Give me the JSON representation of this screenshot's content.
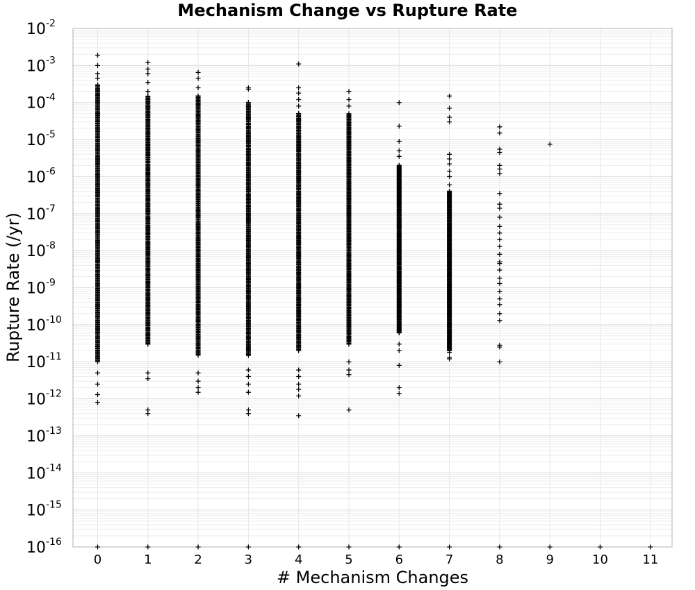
{
  "chart_data": {
    "type": "scatter",
    "title": "Mechanism Change vs Rupture Rate",
    "xlabel": "# Mechanism Changes",
    "ylabel": "Rupture Rate (/yr)",
    "x_ticks": [
      "0",
      "1",
      "2",
      "3",
      "4",
      "5",
      "6",
      "7",
      "8",
      "9",
      "10",
      "11"
    ],
    "xlim": [
      -0.5,
      11.5
    ],
    "y_scale": "log",
    "ylim": [
      1e-16,
      0.01
    ],
    "y_ticks": [
      {
        "base": "10",
        "exp": "-2"
      },
      {
        "base": "10",
        "exp": "-3"
      },
      {
        "base": "10",
        "exp": "-4"
      },
      {
        "base": "10",
        "exp": "-5"
      },
      {
        "base": "10",
        "exp": "-6"
      },
      {
        "base": "10",
        "exp": "-7"
      },
      {
        "base": "10",
        "exp": "-8"
      },
      {
        "base": "10",
        "exp": "-9"
      },
      {
        "base": "10",
        "exp": "-10"
      },
      {
        "base": "10",
        "exp": "-11"
      },
      {
        "base": "10",
        "exp": "-12"
      },
      {
        "base": "10",
        "exp": "-13"
      },
      {
        "base": "10",
        "exp": "-14"
      },
      {
        "base": "10",
        "exp": "-15"
      },
      {
        "base": "10",
        "exp": "-16"
      }
    ],
    "grid": true,
    "marker": "+",
    "series": [
      {
        "dense_ranges": [
          {
            "x": 0,
            "y_min": 1e-11,
            "y_max": 0.0003
          },
          {
            "x": 1,
            "y_min": 3e-11,
            "y_max": 0.00015
          },
          {
            "x": 2,
            "y_min": 1.5e-11,
            "y_max": 0.00015
          },
          {
            "x": 3,
            "y_min": 1.5e-11,
            "y_max": 0.0001
          },
          {
            "x": 4,
            "y_min": 2e-11,
            "y_max": 5e-05
          },
          {
            "x": 5,
            "y_min": 3e-11,
            "y_max": 5e-05
          },
          {
            "x": 6,
            "y_min": 6e-11,
            "y_max": 2e-06
          },
          {
            "x": 7,
            "y_min": 2e-11,
            "y_max": 4e-07
          }
        ],
        "points": [
          [
            0,
            0.0019
          ],
          [
            0,
            0.001
          ],
          [
            0,
            0.0006
          ],
          [
            0,
            0.00045
          ],
          [
            0,
            5e-12
          ],
          [
            0,
            2.5e-12
          ],
          [
            0,
            1.3e-12
          ],
          [
            0,
            8e-13
          ],
          [
            0,
            1e-16
          ],
          [
            1,
            0.0012
          ],
          [
            1,
            0.0008
          ],
          [
            1,
            0.0006
          ],
          [
            1,
            0.00035
          ],
          [
            1,
            0.0002
          ],
          [
            1,
            5e-12
          ],
          [
            1,
            3.5e-12
          ],
          [
            1,
            5e-13
          ],
          [
            1,
            4e-13
          ],
          [
            1,
            1e-16
          ],
          [
            2,
            0.00065
          ],
          [
            2,
            0.00045
          ],
          [
            2,
            0.00025
          ],
          [
            2,
            5e-12
          ],
          [
            2,
            3e-12
          ],
          [
            2,
            2e-12
          ],
          [
            2,
            1.5e-12
          ],
          [
            2,
            1e-16
          ],
          [
            3,
            0.00025
          ],
          [
            3,
            0.00023
          ],
          [
            3,
            6e-12
          ],
          [
            3,
            4e-12
          ],
          [
            3,
            2.5e-12
          ],
          [
            3,
            1.5e-12
          ],
          [
            3,
            5e-13
          ],
          [
            3,
            4e-13
          ],
          [
            3,
            1e-16
          ],
          [
            4,
            0.0011
          ],
          [
            4,
            0.00025
          ],
          [
            4,
            0.00018
          ],
          [
            4,
            0.00012
          ],
          [
            4,
            8e-05
          ],
          [
            4,
            6e-12
          ],
          [
            4,
            4e-12
          ],
          [
            4,
            2.5e-12
          ],
          [
            4,
            1.8e-12
          ],
          [
            4,
            1.2e-12
          ],
          [
            4,
            3.5e-13
          ],
          [
            4,
            1e-16
          ],
          [
            5,
            0.0002
          ],
          [
            5,
            0.00012
          ],
          [
            5,
            8e-05
          ],
          [
            5,
            1e-11
          ],
          [
            5,
            6e-12
          ],
          [
            5,
            4.5e-12
          ],
          [
            5,
            5e-13
          ],
          [
            5,
            1e-16
          ],
          [
            6,
            0.0001
          ],
          [
            6,
            2.3e-05
          ],
          [
            6,
            9e-06
          ],
          [
            6,
            5e-06
          ],
          [
            6,
            3.5e-06
          ],
          [
            6,
            3e-11
          ],
          [
            6,
            2e-11
          ],
          [
            6,
            8e-12
          ],
          [
            6,
            2e-12
          ],
          [
            6,
            1.4e-12
          ],
          [
            6,
            1e-16
          ],
          [
            7,
            0.00015
          ],
          [
            7,
            7e-05
          ],
          [
            7,
            4e-05
          ],
          [
            7,
            3e-05
          ],
          [
            7,
            4e-06
          ],
          [
            7,
            3e-06
          ],
          [
            7,
            2.2e-06
          ],
          [
            7,
            1.4e-06
          ],
          [
            7,
            1e-06
          ],
          [
            7,
            6e-07
          ],
          [
            7,
            2.5e-11
          ],
          [
            7,
            1.8e-11
          ],
          [
            7,
            1.3e-11
          ],
          [
            7,
            1.2e-11
          ],
          [
            7,
            1e-16
          ],
          [
            8,
            2.2e-05
          ],
          [
            8,
            1.5e-05
          ],
          [
            8,
            5.5e-06
          ],
          [
            8,
            4.5e-06
          ],
          [
            8,
            2e-06
          ],
          [
            8,
            1.6e-06
          ],
          [
            8,
            1.2e-06
          ],
          [
            8,
            3.5e-07
          ],
          [
            8,
            1.8e-07
          ],
          [
            8,
            1.4e-07
          ],
          [
            8,
            8e-08
          ],
          [
            8,
            4.5e-08
          ],
          [
            8,
            3e-08
          ],
          [
            8,
            2e-08
          ],
          [
            8,
            1.3e-08
          ],
          [
            8,
            8e-09
          ],
          [
            8,
            5e-09
          ],
          [
            8,
            4.5e-09
          ],
          [
            8,
            3e-09
          ],
          [
            8,
            1.8e-09
          ],
          [
            8,
            1.3e-09
          ],
          [
            8,
            8e-10
          ],
          [
            8,
            5e-10
          ],
          [
            8,
            3.5e-10
          ],
          [
            8,
            2e-10
          ],
          [
            8,
            1.3e-10
          ],
          [
            8,
            2.8e-11
          ],
          [
            8,
            2.5e-11
          ],
          [
            8,
            1e-11
          ],
          [
            8,
            1e-16
          ],
          [
            9,
            7.5e-06
          ],
          [
            9,
            1e-16
          ],
          [
            10,
            1e-16
          ],
          [
            11,
            1e-16
          ]
        ]
      }
    ]
  }
}
